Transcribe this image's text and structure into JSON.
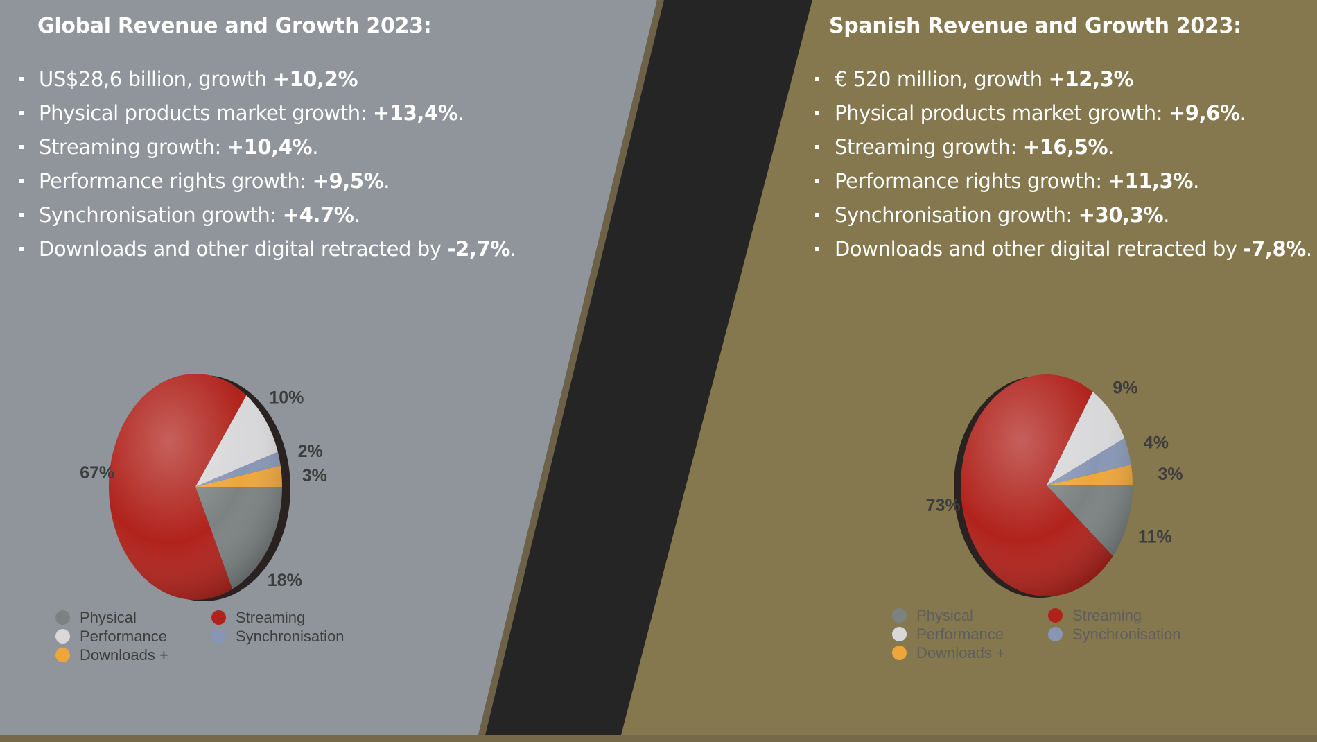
{
  "colors": {
    "left_panel": "#8f959a",
    "right_panel": "#85784f",
    "divider": "#252525",
    "physical": "#7c8282",
    "streaming": "#b0231c",
    "performance": "#d8d8da",
    "synchronisation": "#8796b5",
    "downloads": "#eea63a"
  },
  "global": {
    "heading": "Global Revenue and Growth 2023:",
    "bullets": [
      {
        "text": "US$28,6 billion, growth ",
        "value": "+10,2%",
        "suffix": ""
      },
      {
        "text": "Physical products market growth: ",
        "value": "+13,4%",
        "suffix": "."
      },
      {
        "text": "Streaming growth: ",
        "value": "+10,4%",
        "suffix": "."
      },
      {
        "text": "Performance rights growth: ",
        "value": "+9,5%",
        "suffix": "."
      },
      {
        "text": "Synchronisation growth: ",
        "value": "+4.7%",
        "suffix": "."
      },
      {
        "text": "Downloads and other digital retracted by ",
        "value": "-2,7%",
        "suffix": "."
      }
    ]
  },
  "spain": {
    "heading": "Spanish Revenue and Growth 2023:",
    "bullets": [
      {
        "text": "€ 520 million, growth ",
        "value": "+12,3%",
        "suffix": ""
      },
      {
        "text": "Physical products market growth: ",
        "value": "+9,6%",
        "suffix": "."
      },
      {
        "text": "Streaming growth: ",
        "value": "+16,5%",
        "suffix": "."
      },
      {
        "text": "Performance rights growth: ",
        "value": "+11,3%",
        "suffix": "."
      },
      {
        "text": "Synchronisation growth: ",
        "value": "+30,3%",
        "suffix": "."
      },
      {
        "text": "Downloads and other digital retracted by ",
        "value": "-7,8%",
        "suffix": "."
      }
    ]
  },
  "chart_data": [
    {
      "type": "pie",
      "categories": [
        "Physical",
        "Streaming",
        "Performance",
        "Synchronisation",
        "Downloads +"
      ],
      "values": [
        18,
        67,
        10,
        2,
        3
      ],
      "labels": [
        "18%",
        "67%",
        "10%",
        "2%",
        "3%"
      ],
      "legend": [
        "Physical",
        "Streaming",
        "Performance",
        "Synchronisation",
        "Downloads +"
      ],
      "legend_placement": "bottom"
    },
    {
      "type": "pie",
      "categories": [
        "Physical",
        "Streaming",
        "Performance",
        "Synchronisation",
        "Downloads +"
      ],
      "values": [
        11,
        73,
        9,
        4,
        3
      ],
      "labels": [
        "11%",
        "73%",
        "9%",
        "4%",
        "3%"
      ],
      "legend": [
        "Physical",
        "Streaming",
        "Performance",
        "Synchronisation",
        "Downloads +"
      ],
      "legend_placement": "bottom"
    }
  ]
}
